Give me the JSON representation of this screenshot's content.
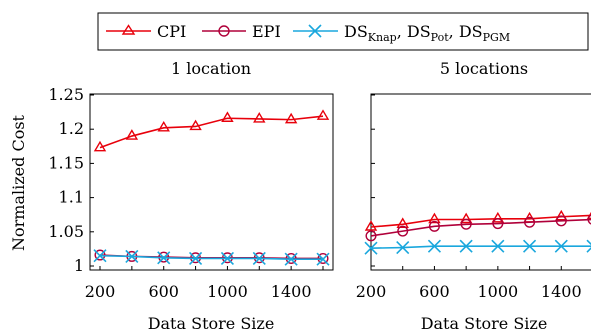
{
  "chart_data": [
    {
      "type": "line",
      "title": "1 location",
      "xlabel": "Data Store Size",
      "ylabel": "Normalized Cost",
      "xlim": [
        200,
        1600
      ],
      "ylim": [
        0.99,
        1.25
      ],
      "x": [
        200,
        400,
        600,
        800,
        1000,
        1200,
        1400,
        1600
      ],
      "xticks": [
        "200",
        "600",
        "1000",
        "1400"
      ],
      "yticks": [
        "1",
        "1.05",
        "1.1",
        "1.15",
        "1.2",
        "1.25"
      ],
      "series": [
        {
          "name": "CPI",
          "color": "#e8000b",
          "marker": "triangle",
          "values": [
            1.173,
            1.19,
            1.202,
            1.204,
            1.216,
            1.215,
            1.214,
            1.219
          ]
        },
        {
          "name": "EPI",
          "color": "#b0003a",
          "marker": "circle",
          "values": [
            1.016,
            1.014,
            1.013,
            1.012,
            1.012,
            1.012,
            1.011,
            1.011
          ]
        },
        {
          "name": "DS_Knap, DS_Pot, DS_PGM",
          "color": "#1aa7dd",
          "marker": "x",
          "values": [
            1.015,
            1.014,
            1.012,
            1.011,
            1.011,
            1.011,
            1.01,
            1.01
          ]
        }
      ]
    },
    {
      "type": "line",
      "title": "5 locations",
      "xlabel": "Data Store Size",
      "ylabel": "",
      "xlim": [
        200,
        1600
      ],
      "ylim": [
        0.99,
        1.25
      ],
      "x": [
        200,
        400,
        600,
        800,
        1000,
        1200,
        1400,
        1600
      ],
      "xticks": [
        "200",
        "600",
        "1000",
        "1400"
      ],
      "series": [
        {
          "name": "CPI",
          "color": "#e8000b",
          "marker": "triangle",
          "values": [
            1.057,
            1.061,
            1.068,
            1.068,
            1.069,
            1.069,
            1.072,
            1.074
          ]
        },
        {
          "name": "EPI",
          "color": "#b0003a",
          "marker": "circle",
          "values": [
            1.044,
            1.051,
            1.058,
            1.061,
            1.062,
            1.064,
            1.066,
            1.068
          ]
        },
        {
          "name": "DS_Knap, DS_Pot, DS_PGM",
          "color": "#1aa7dd",
          "marker": "x",
          "values": [
            1.026,
            1.027,
            1.029,
            1.029,
            1.029,
            1.029,
            1.029,
            1.029
          ]
        }
      ]
    }
  ],
  "legend": {
    "cpi": "CPI",
    "epi": "EPI",
    "ds": {
      "base": "DS",
      "sub1": "Knap",
      "sub2": "Pot",
      "sub3": "PGM",
      "sep": ", "
    }
  }
}
